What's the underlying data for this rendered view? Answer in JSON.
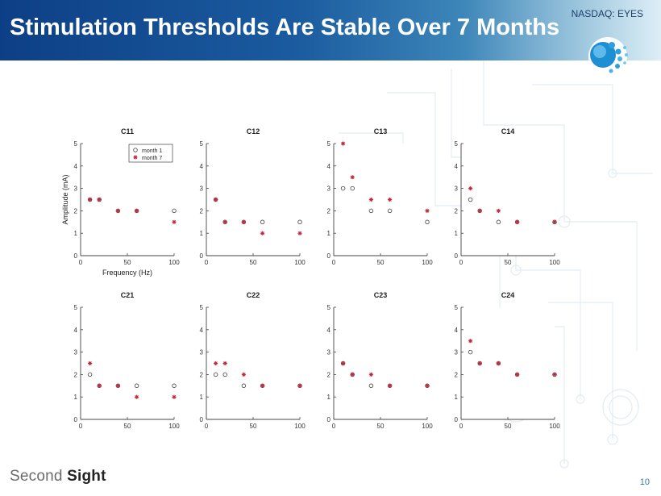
{
  "slide": {
    "title": "Stimulation Thresholds Are Stable Over 7 Months",
    "ticker": "NASDAQ: EYES",
    "brand_part1": "Second ",
    "brand_part2": "Sight",
    "page_number": "10"
  },
  "colors": {
    "header_dark": "#0d3f86",
    "month1_marker": "#555555",
    "month7_marker": "#c0283b"
  },
  "chart_data": [
    {
      "type": "scatter",
      "title": "C11",
      "xlabel": "Frequency (Hz)",
      "ylabel": "Amplitude (mA)",
      "xlim": [
        0,
        100
      ],
      "ylim": [
        0,
        5
      ],
      "xticks": [
        0,
        50,
        100
      ],
      "yticks": [
        0,
        1,
        2,
        3,
        4,
        5
      ],
      "grid": false,
      "legend": "top-right",
      "series": [
        {
          "name": "month 1",
          "marker": "circle",
          "x": [
            10,
            20,
            40,
            60,
            100
          ],
          "y": [
            2.5,
            2.5,
            2,
            2,
            2
          ]
        },
        {
          "name": "month 7",
          "marker": "star",
          "x": [
            10,
            20,
            40,
            60,
            100
          ],
          "y": [
            2.5,
            2.5,
            2,
            2,
            1.5
          ]
        }
      ]
    },
    {
      "type": "scatter",
      "title": "C12",
      "xlabel": "",
      "ylabel": "",
      "xlim": [
        0,
        100
      ],
      "ylim": [
        0,
        5
      ],
      "xticks": [
        0,
        50,
        100
      ],
      "yticks": [
        0,
        1,
        2,
        3,
        4,
        5
      ],
      "grid": false,
      "series": [
        {
          "marker": "circle",
          "x": [
            10,
            20,
            40,
            60,
            100
          ],
          "y": [
            2.5,
            1.5,
            1.5,
            1.5,
            1.5
          ]
        },
        {
          "marker": "star",
          "x": [
            10,
            20,
            40,
            60,
            100
          ],
          "y": [
            2.5,
            1.5,
            1.5,
            1,
            1
          ]
        }
      ]
    },
    {
      "type": "scatter",
      "title": "C13",
      "xlabel": "",
      "ylabel": "",
      "xlim": [
        0,
        100
      ],
      "ylim": [
        0,
        5
      ],
      "xticks": [
        0,
        50,
        100
      ],
      "yticks": [
        0,
        1,
        2,
        3,
        4,
        5
      ],
      "grid": false,
      "series": [
        {
          "marker": "circle",
          "x": [
            10,
            20,
            40,
            60,
            100
          ],
          "y": [
            3,
            3,
            2,
            2,
            1.5
          ]
        },
        {
          "marker": "star",
          "x": [
            10,
            20,
            40,
            60,
            100
          ],
          "y": [
            5,
            3.5,
            2.5,
            2.5,
            2
          ]
        }
      ]
    },
    {
      "type": "scatter",
      "title": "C14",
      "xlabel": "",
      "ylabel": "",
      "xlim": [
        0,
        100
      ],
      "ylim": [
        0,
        5
      ],
      "xticks": [
        0,
        50,
        100
      ],
      "yticks": [
        0,
        1,
        2,
        3,
        4,
        5
      ],
      "grid": false,
      "series": [
        {
          "marker": "circle",
          "x": [
            10,
            20,
            40,
            60,
            100
          ],
          "y": [
            2.5,
            2,
            1.5,
            1.5,
            1.5
          ]
        },
        {
          "marker": "star",
          "x": [
            10,
            20,
            40,
            60,
            100
          ],
          "y": [
            3,
            2,
            2,
            1.5,
            1.5
          ]
        }
      ]
    },
    {
      "type": "scatter",
      "title": "C21",
      "xlabel": "",
      "ylabel": "",
      "xlim": [
        0,
        100
      ],
      "ylim": [
        0,
        5
      ],
      "xticks": [
        0,
        50,
        100
      ],
      "yticks": [
        0,
        1,
        2,
        3,
        4,
        5
      ],
      "grid": false,
      "series": [
        {
          "marker": "circle",
          "x": [
            10,
            20,
            40,
            60,
            100
          ],
          "y": [
            2,
            1.5,
            1.5,
            1.5,
            1.5
          ]
        },
        {
          "marker": "star",
          "x": [
            10,
            20,
            40,
            60,
            100
          ],
          "y": [
            2.5,
            1.5,
            1.5,
            1,
            1
          ]
        }
      ]
    },
    {
      "type": "scatter",
      "title": "C22",
      "xlabel": "",
      "ylabel": "",
      "xlim": [
        0,
        100
      ],
      "ylim": [
        0,
        5
      ],
      "xticks": [
        0,
        50,
        100
      ],
      "yticks": [
        0,
        1,
        2,
        3,
        4,
        5
      ],
      "grid": false,
      "series": [
        {
          "marker": "circle",
          "x": [
            10,
            20,
            40,
            60,
            100
          ],
          "y": [
            2,
            2,
            1.5,
            1.5,
            1.5
          ]
        },
        {
          "marker": "star",
          "x": [
            10,
            20,
            40,
            60,
            100
          ],
          "y": [
            2.5,
            2.5,
            2,
            1.5,
            1.5
          ]
        }
      ]
    },
    {
      "type": "scatter",
      "title": "C23",
      "xlabel": "",
      "ylabel": "",
      "xlim": [
        0,
        100
      ],
      "ylim": [
        0,
        5
      ],
      "xticks": [
        0,
        50,
        100
      ],
      "yticks": [
        0,
        1,
        2,
        3,
        4,
        5
      ],
      "grid": false,
      "series": [
        {
          "marker": "circle",
          "x": [
            10,
            20,
            40,
            60,
            100
          ],
          "y": [
            2.5,
            2,
            1.5,
            1.5,
            1.5
          ]
        },
        {
          "marker": "star",
          "x": [
            10,
            20,
            40,
            60,
            100
          ],
          "y": [
            2.5,
            2,
            2,
            1.5,
            1.5
          ]
        }
      ]
    },
    {
      "type": "scatter",
      "title": "C24",
      "xlabel": "",
      "ylabel": "",
      "xlim": [
        0,
        100
      ],
      "ylim": [
        0,
        5
      ],
      "xticks": [
        0,
        50,
        100
      ],
      "yticks": [
        0,
        1,
        2,
        3,
        4,
        5
      ],
      "grid": false,
      "series": [
        {
          "marker": "circle",
          "x": [
            10,
            20,
            40,
            60,
            100
          ],
          "y": [
            3,
            2.5,
            2.5,
            2,
            2
          ]
        },
        {
          "marker": "star",
          "x": [
            10,
            20,
            40,
            60,
            100
          ],
          "y": [
            3.5,
            2.5,
            2.5,
            2,
            2
          ]
        }
      ]
    }
  ]
}
